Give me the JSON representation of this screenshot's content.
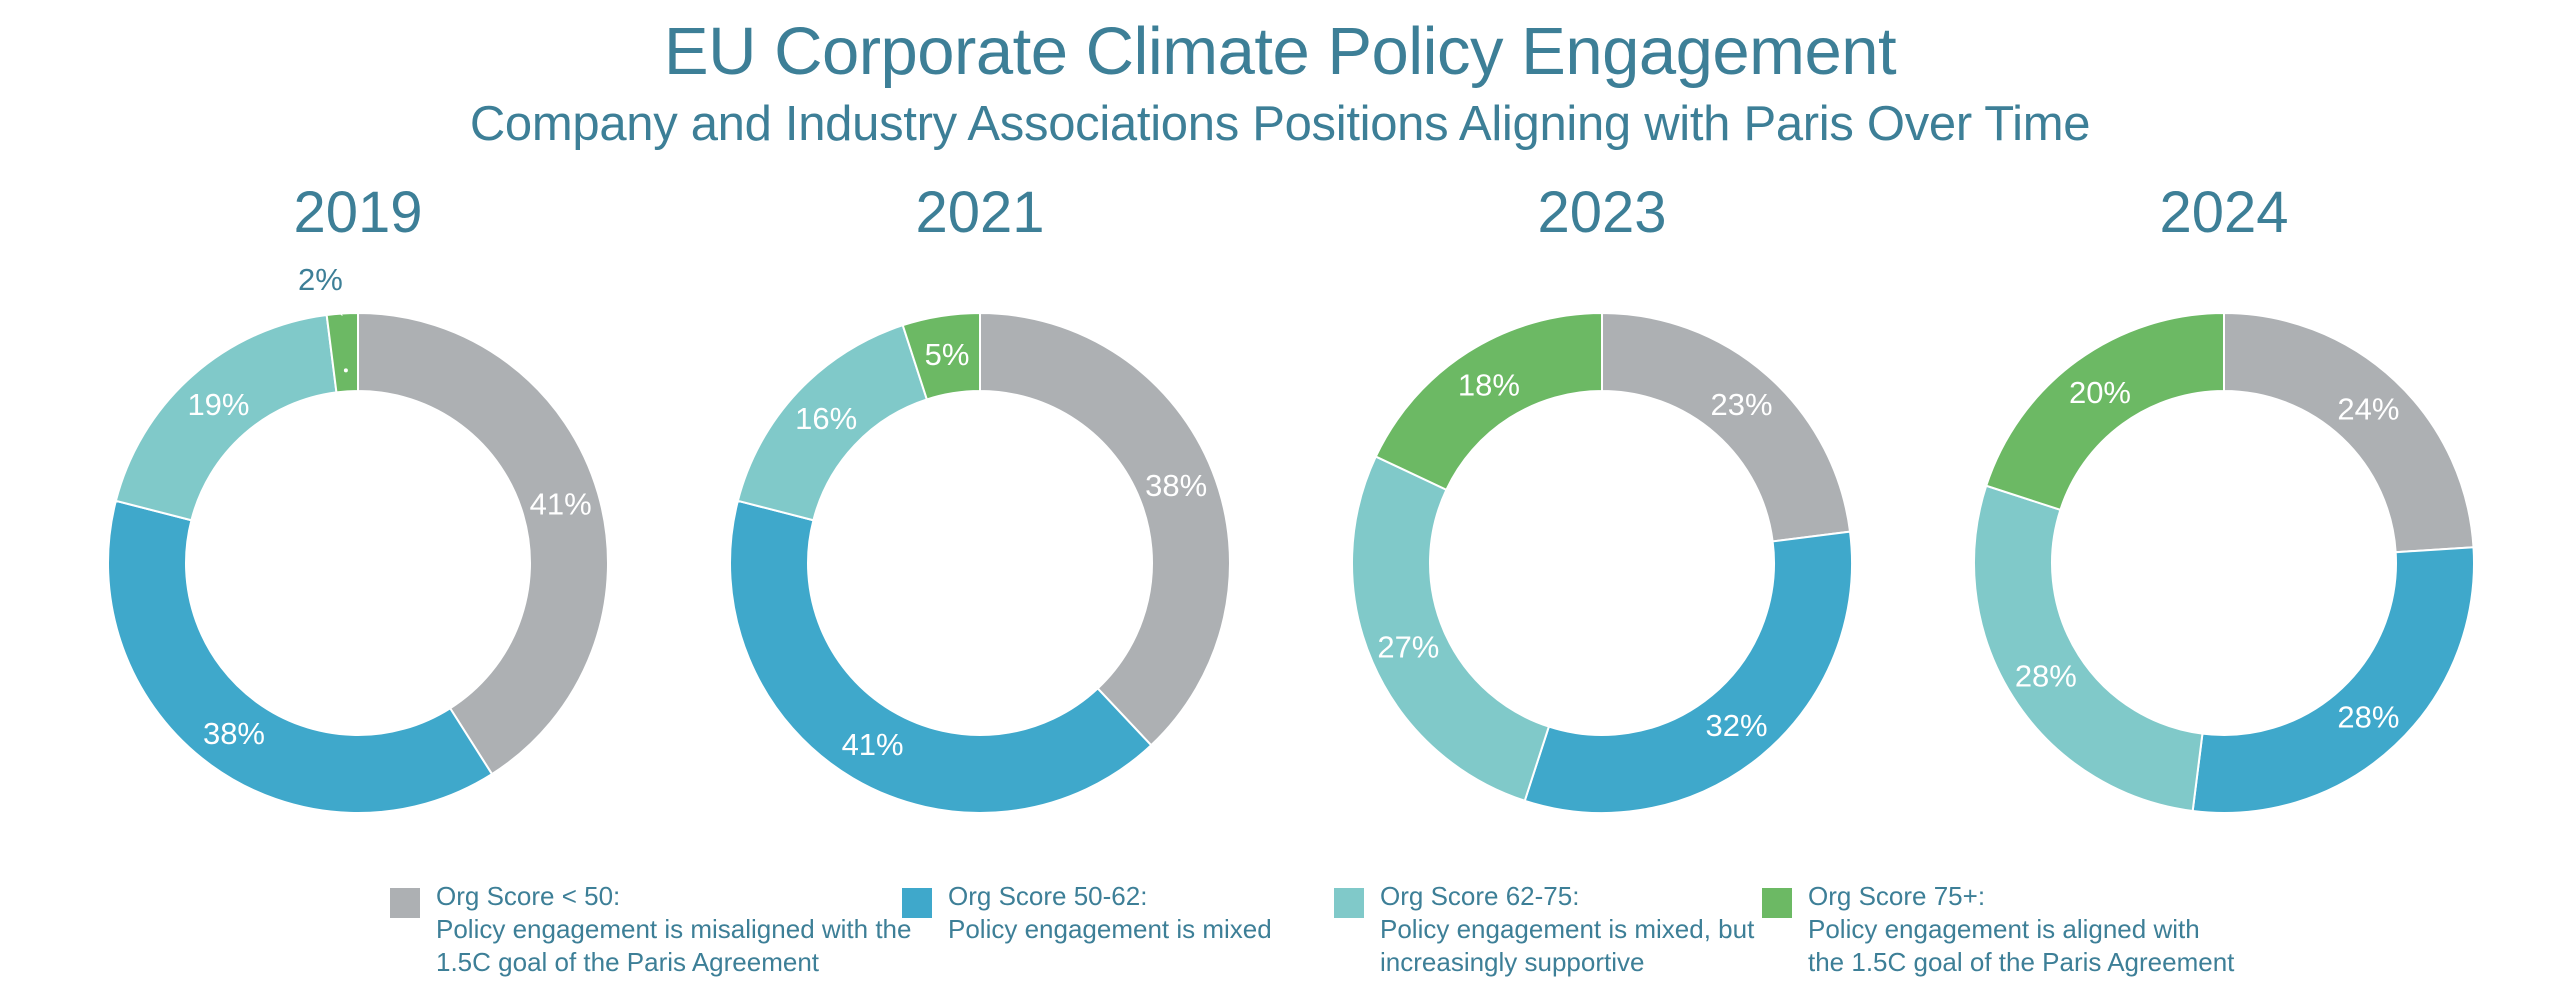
{
  "header": {
    "title": "EU Corporate Climate Policy Engagement",
    "subtitle": "Company and Industry Associations Positions Aligning with Paris Over Time"
  },
  "colors": {
    "score_lt_50": "#adb0b3",
    "score_50_62": "#3fa8cb",
    "score_62_75": "#80c9c9",
    "score_75_plus": "#6cb964",
    "text": "#3d7f97",
    "label_on_slice": "#ffffff"
  },
  "legend": [
    {
      "key": "score_lt_50",
      "line1": "Org Score < 50:",
      "line2": "Policy engagement is misaligned with the",
      "line3": "1.5C goal of the Paris Agreement"
    },
    {
      "key": "score_50_62",
      "line1": "Org Score 50-62:",
      "line2": "Policy engagement is mixed",
      "line3": ""
    },
    {
      "key": "score_62_75",
      "line1": "Org Score 62-75:",
      "line2": "Policy engagement is mixed, but",
      "line3": "increasingly supportive"
    },
    {
      "key": "score_75_plus",
      "line1": "Org Score 75+:",
      "line2": "Policy engagement is aligned with",
      "line3": "the 1.5C goal of the Paris Agreement"
    }
  ],
  "chart_data": [
    {
      "type": "pie",
      "donut": true,
      "title": "2019",
      "categories": [
        "Org Score < 50",
        "Org Score 50-62",
        "Org Score 62-75",
        "Org Score 75+"
      ],
      "values": [
        41,
        38,
        19,
        2
      ],
      "labels": [
        "41%",
        "38%",
        "19%",
        "2%"
      ]
    },
    {
      "type": "pie",
      "donut": true,
      "title": "2021",
      "categories": [
        "Org Score < 50",
        "Org Score 50-62",
        "Org Score 62-75",
        "Org Score 75+"
      ],
      "values": [
        38,
        41,
        16,
        5
      ],
      "labels": [
        "38%",
        "41%",
        "16%",
        "5%"
      ]
    },
    {
      "type": "pie",
      "donut": true,
      "title": "2023",
      "categories": [
        "Org Score < 50",
        "Org Score 50-62",
        "Org Score 62-75",
        "Org Score 75+"
      ],
      "values": [
        23,
        32,
        27,
        18
      ],
      "labels": [
        "23%",
        "32%",
        "27%",
        "18%"
      ]
    },
    {
      "type": "pie",
      "donut": true,
      "title": "2024",
      "categories": [
        "Org Score < 50",
        "Org Score 50-62",
        "Org Score 62-75",
        "Org Score 75+"
      ],
      "values": [
        24,
        28,
        28,
        20
      ],
      "labels": [
        "24%",
        "28%",
        "28%",
        "20%"
      ]
    }
  ]
}
